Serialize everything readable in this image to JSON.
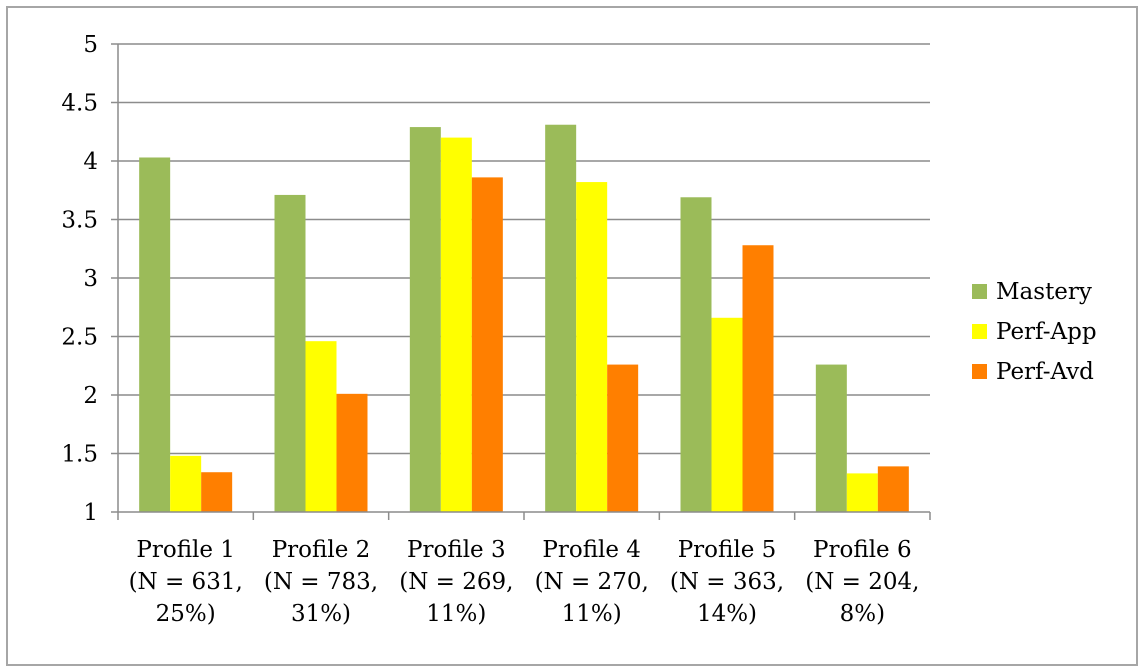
{
  "chart_data": {
    "type": "bar",
    "categories": [
      [
        "Profile 1",
        "(N = 631,",
        "25%)"
      ],
      [
        "Profile 2",
        "(N = 783,",
        "31%)"
      ],
      [
        "Profile 3",
        "(N = 269,",
        "11%)"
      ],
      [
        "Profile 4",
        "(N = 270,",
        "11%)"
      ],
      [
        "Profile 5",
        "(N = 363,",
        "14%)"
      ],
      [
        "Profile 6",
        "(N = 204,",
        "8%)"
      ]
    ],
    "series": [
      {
        "name": "Mastery",
        "color": "#9bbb59",
        "values": [
          4.03,
          3.71,
          4.29,
          4.31,
          3.69,
          2.26
        ]
      },
      {
        "name": "Perf-App",
        "color": "#ffff00",
        "values": [
          1.48,
          2.46,
          4.2,
          3.82,
          2.66,
          1.33
        ]
      },
      {
        "name": "Perf-Avd",
        "color": "#ff7f00",
        "values": [
          1.34,
          2.01,
          3.86,
          2.26,
          3.28,
          1.39
        ]
      }
    ],
    "title": "",
    "xlabel": "",
    "ylabel": "",
    "ylim": [
      1,
      5
    ],
    "yticks": [
      "1",
      "1.5",
      "2",
      "2.5",
      "3",
      "3.5",
      "4",
      "4.5",
      "5"
    ],
    "grid": true,
    "legend_position": "right"
  }
}
